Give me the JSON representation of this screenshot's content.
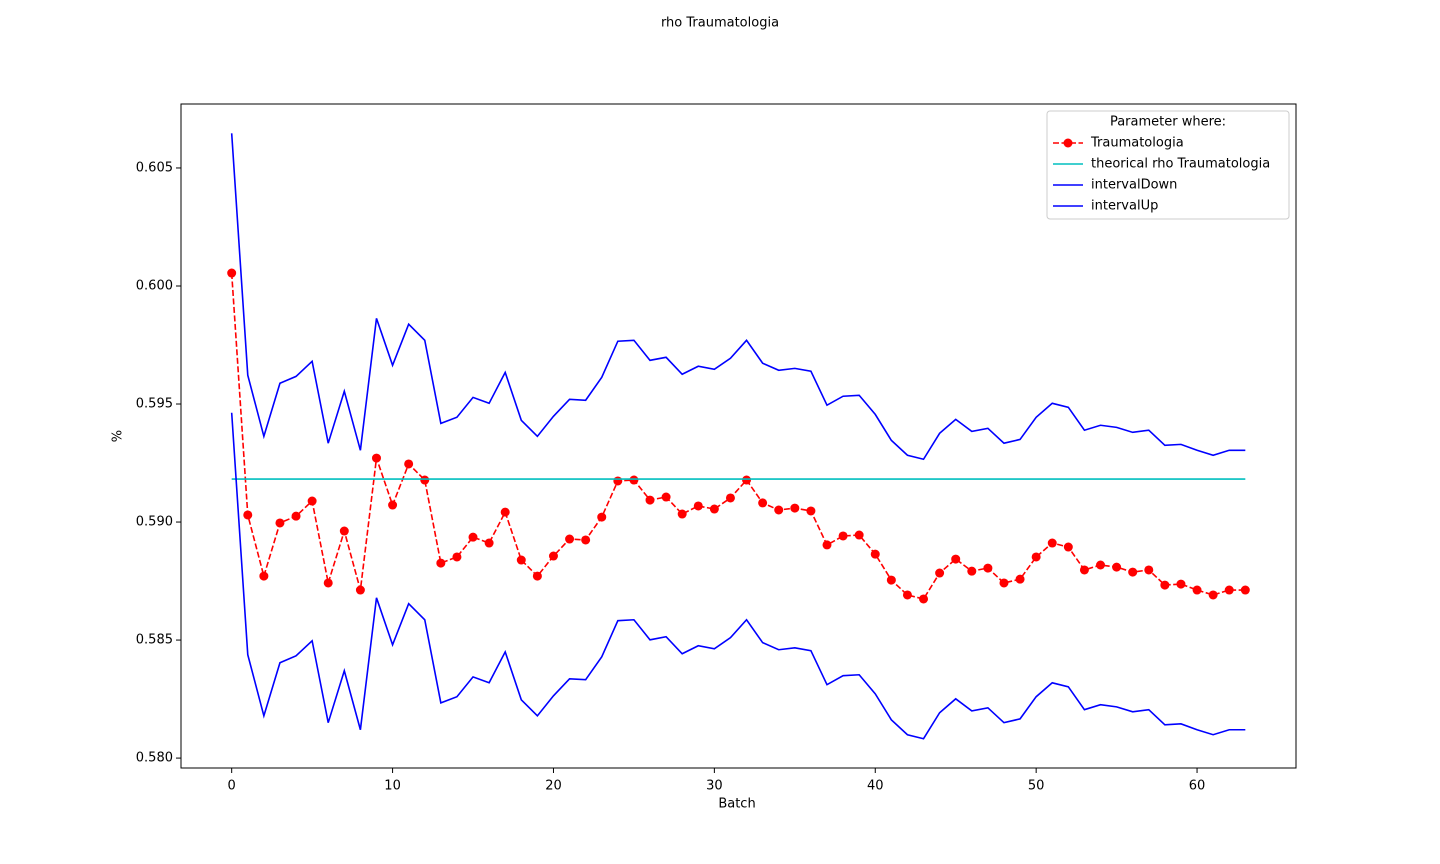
{
  "chart_data": {
    "type": "line",
    "title": "rho Traumatologia",
    "xlabel": "Batch",
    "ylabel": "%",
    "x": [
      0,
      1,
      2,
      3,
      4,
      5,
      6,
      7,
      8,
      9,
      10,
      11,
      12,
      13,
      14,
      15,
      16,
      17,
      18,
      19,
      20,
      21,
      22,
      23,
      24,
      25,
      26,
      27,
      28,
      29,
      30,
      31,
      32,
      33,
      34,
      35,
      36,
      37,
      38,
      39,
      40,
      41,
      42,
      43,
      44,
      45,
      46,
      47,
      48,
      49,
      50,
      51,
      52,
      53,
      54,
      55,
      56,
      57,
      58,
      59,
      60,
      61,
      62,
      63
    ],
    "xlim": [
      -3.15,
      66.15
    ],
    "xticks": [
      0,
      10,
      20,
      30,
      40,
      50,
      60
    ],
    "ylim": [
      0.57958,
      0.60771
    ],
    "yticks": [
      {
        "value": 0.58,
        "label": "0.580"
      },
      0.585,
      {
        "value": 0.59,
        "label": "0.590"
      },
      0.595,
      {
        "value": 0.6,
        "label": "0.600"
      },
      0.605
    ],
    "legend_title": "Parameter where:",
    "legend_position": "upper right",
    "series": [
      {
        "name": "Traumatologia",
        "color": "#ff0000",
        "linestyle": "--",
        "marker": "o",
        "values": [
          0.60055,
          0.5903,
          0.58771,
          0.58996,
          0.59025,
          0.59089,
          0.58742,
          0.58962,
          0.58712,
          0.59271,
          0.59072,
          0.59246,
          0.59178,
          0.58826,
          0.58852,
          0.58936,
          0.58911,
          0.59042,
          0.58839,
          0.58771,
          0.58856,
          0.58928,
          0.58924,
          0.59021,
          0.59174,
          0.59178,
          0.59093,
          0.59106,
          0.59034,
          0.59068,
          0.59055,
          0.59102,
          0.59178,
          0.59081,
          0.59051,
          0.59059,
          0.59047,
          0.58903,
          0.58941,
          0.58945,
          0.58864,
          0.58754,
          0.58691,
          0.58674,
          0.58784,
          0.58843,
          0.58792,
          0.58805,
          0.58742,
          0.58758,
          0.58852,
          0.58911,
          0.58894,
          0.58797,
          0.58818,
          0.58809,
          0.58788,
          0.58797,
          0.58733,
          0.58737,
          0.58712,
          0.58691,
          0.58712,
          0.58712
        ]
      },
      {
        "name": "theorical rho Traumatologia",
        "color": "#00bfbf",
        "linestyle": "-",
        "values": [
          0.59182,
          0.59182,
          0.59182,
          0.59182,
          0.59182,
          0.59182,
          0.59182,
          0.59182,
          0.59182,
          0.59182,
          0.59182,
          0.59182,
          0.59182,
          0.59182,
          0.59182,
          0.59182,
          0.59182,
          0.59182,
          0.59182,
          0.59182,
          0.59182,
          0.59182,
          0.59182,
          0.59182,
          0.59182,
          0.59182,
          0.59182,
          0.59182,
          0.59182,
          0.59182,
          0.59182,
          0.59182,
          0.59182,
          0.59182,
          0.59182,
          0.59182,
          0.59182,
          0.59182,
          0.59182,
          0.59182,
          0.59182,
          0.59182,
          0.59182,
          0.59182,
          0.59182,
          0.59182,
          0.59182,
          0.59182,
          0.59182,
          0.59182,
          0.59182,
          0.59182,
          0.59182,
          0.59182,
          0.59182,
          0.59182,
          0.59182,
          0.59182,
          0.59182,
          0.59182,
          0.59182,
          0.59182,
          0.59182,
          0.59182
        ]
      },
      {
        "name": "intervalDown",
        "color": "#0000ff",
        "linestyle": "-",
        "values": [
          0.59463,
          0.58438,
          0.58179,
          0.58404,
          0.58433,
          0.58497,
          0.5815,
          0.5837,
          0.5812,
          0.58679,
          0.5848,
          0.58654,
          0.58586,
          0.58234,
          0.5826,
          0.58344,
          0.58319,
          0.5845,
          0.58247,
          0.58179,
          0.58264,
          0.58336,
          0.58332,
          0.58429,
          0.58582,
          0.58586,
          0.58501,
          0.58514,
          0.58442,
          0.58476,
          0.58463,
          0.5851,
          0.58586,
          0.58489,
          0.58459,
          0.58467,
          0.58455,
          0.58311,
          0.58349,
          0.58353,
          0.58272,
          0.58162,
          0.58099,
          0.58082,
          0.58192,
          0.58251,
          0.582,
          0.58213,
          0.5815,
          0.58166,
          0.5826,
          0.58319,
          0.58302,
          0.58205,
          0.58226,
          0.58217,
          0.58196,
          0.58205,
          0.58141,
          0.58145,
          0.5812,
          0.58099,
          0.5812,
          0.5812
        ]
      },
      {
        "name": "intervalUp",
        "color": "#0000ff",
        "linestyle": "-",
        "values": [
          0.60647,
          0.59622,
          0.59363,
          0.59588,
          0.59617,
          0.59681,
          0.59334,
          0.59554,
          0.59304,
          0.59863,
          0.59664,
          0.59838,
          0.5977,
          0.59418,
          0.59444,
          0.59528,
          0.59503,
          0.59634,
          0.59431,
          0.59363,
          0.59448,
          0.5952,
          0.59516,
          0.59613,
          0.59766,
          0.5977,
          0.59685,
          0.59698,
          0.59626,
          0.5966,
          0.59647,
          0.59694,
          0.5977,
          0.59673,
          0.59643,
          0.59651,
          0.59639,
          0.59495,
          0.59533,
          0.59537,
          0.59456,
          0.59346,
          0.59283,
          0.59266,
          0.59376,
          0.59435,
          0.59384,
          0.59397,
          0.59334,
          0.5935,
          0.59444,
          0.59503,
          0.59486,
          0.59389,
          0.5941,
          0.59401,
          0.5938,
          0.59389,
          0.59325,
          0.59329,
          0.59304,
          0.59283,
          0.59304,
          0.59304
        ]
      }
    ]
  }
}
